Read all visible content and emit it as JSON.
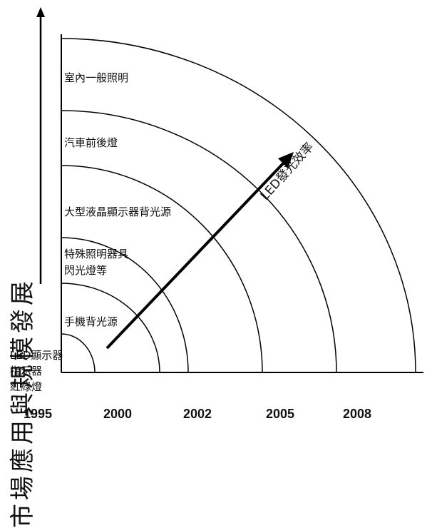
{
  "y_axis_label": "市場應用與規模發展",
  "arrow_label": "LED發光效率",
  "categories": {
    "general_lighting": "室內一般照明",
    "automotive_lights": "汽車前後燈",
    "lcd_backlight": "大型液晶顯示器背光源",
    "special_lighting_1": "特殊照明器具",
    "special_lighting_2": "閃光燈等",
    "phone_backlight": "手機背光源",
    "led_display_1": "LED顯示器",
    "led_display_2": "指示器",
    "led_display_3": "紅綠燈"
  },
  "years": [
    "1995",
    "2000",
    "2002",
    "2005",
    "2008"
  ]
}
